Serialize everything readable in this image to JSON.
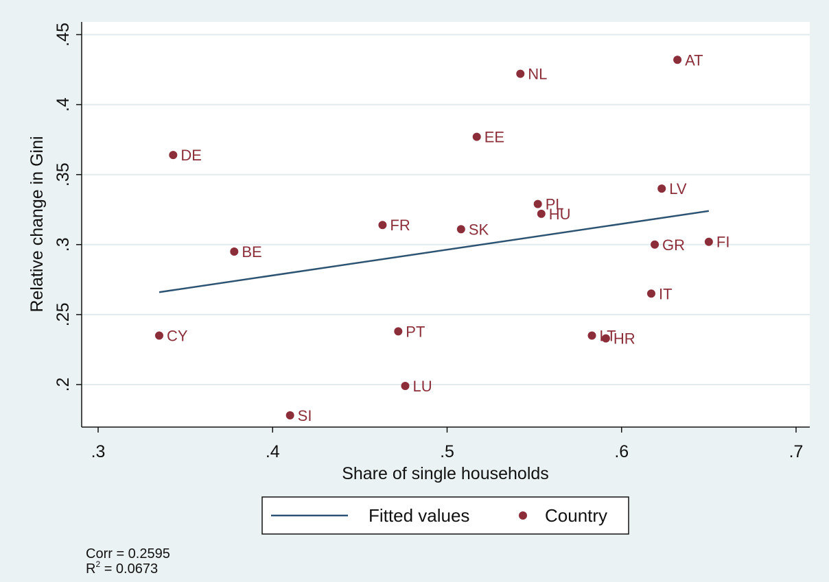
{
  "chart_data": {
    "type": "scatter",
    "title": "",
    "xlabel": "Share of single households",
    "ylabel": "Relative change in Gini",
    "xlim": [
      0.3,
      0.7
    ],
    "ylim": [
      0.175,
      0.45
    ],
    "xticks": [
      0.3,
      0.4,
      0.5,
      0.6,
      0.7
    ],
    "xtick_labels": [
      ".3",
      ".4",
      ".5",
      ".6",
      ".7"
    ],
    "yticks": [
      0.2,
      0.25,
      0.3,
      0.35,
      0.4,
      0.45
    ],
    "ytick_labels": [
      ".2",
      ".25",
      ".3",
      ".35",
      ".4",
      ".45"
    ],
    "grid": true,
    "legend_position": "bottom",
    "colors": {
      "points": "#8b2e3a",
      "fitted": "#2d5372",
      "background": "#eaf2f3",
      "plot": "#ffffff",
      "grid": "#e1ebee"
    },
    "series": [
      {
        "name": "Country",
        "type": "scatter",
        "points": [
          {
            "label": "AT",
            "x": 0.632,
            "y": 0.432
          },
          {
            "label": "NL",
            "x": 0.542,
            "y": 0.422
          },
          {
            "label": "EE",
            "x": 0.517,
            "y": 0.377
          },
          {
            "label": "DE",
            "x": 0.343,
            "y": 0.364
          },
          {
            "label": "LV",
            "x": 0.623,
            "y": 0.34
          },
          {
            "label": "PL",
            "x": 0.552,
            "y": 0.329
          },
          {
            "label": "HU",
            "x": 0.554,
            "y": 0.322
          },
          {
            "label": "FR",
            "x": 0.463,
            "y": 0.314
          },
          {
            "label": "SK",
            "x": 0.508,
            "y": 0.311
          },
          {
            "label": "FI",
            "x": 0.65,
            "y": 0.302
          },
          {
            "label": "GR",
            "x": 0.619,
            "y": 0.3
          },
          {
            "label": "BE",
            "x": 0.378,
            "y": 0.295
          },
          {
            "label": "IT",
            "x": 0.617,
            "y": 0.265
          },
          {
            "label": "PT",
            "x": 0.472,
            "y": 0.238
          },
          {
            "label": "LT",
            "x": 0.583,
            "y": 0.235
          },
          {
            "label": "CY",
            "x": 0.335,
            "y": 0.235
          },
          {
            "label": "HR",
            "x": 0.591,
            "y": 0.233
          },
          {
            "label": "LU",
            "x": 0.476,
            "y": 0.199
          },
          {
            "label": "SI",
            "x": 0.41,
            "y": 0.178
          }
        ]
      },
      {
        "name": "Fitted values",
        "type": "line",
        "x": [
          0.335,
          0.65
        ],
        "y": [
          0.266,
          0.324
        ]
      }
    ],
    "annotations": {
      "corr": "Corr = 0.2595",
      "r2_prefix": "R",
      "r2_sup": "2",
      "r2_value": " = 0.0673"
    }
  }
}
